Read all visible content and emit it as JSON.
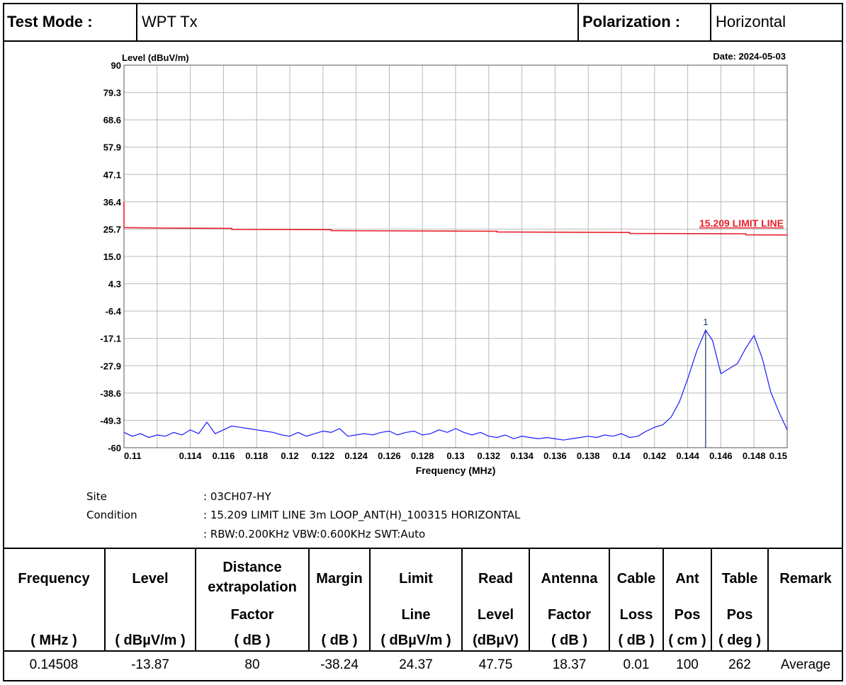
{
  "header": {
    "test_mode_label": "Test Mode :",
    "test_mode_value": "WPT Tx",
    "polarization_label": "Polarization :",
    "polarization_value": "Horizontal"
  },
  "chart_data": {
    "type": "line",
    "ylabel": "Level (dBuV/m)",
    "xlabel": "Frequency (MHz)",
    "date": "Date: 2024-05-03",
    "yticks": [
      "90",
      "79.3",
      "68.6",
      "57.9",
      "47.1",
      "36.4",
      "25.7",
      "15.0",
      "4.3",
      "-6.4",
      "-17.1",
      "-27.9",
      "-38.6",
      "-49.3",
      "-60"
    ],
    "ylim": [
      -60,
      90
    ],
    "xlim": [
      0.11,
      0.15
    ],
    "xticks": [
      "0.11",
      "0.114",
      "0.116",
      "0.118",
      "0.12",
      "0.122",
      "0.124",
      "0.126",
      "0.128",
      "0.13",
      "0.132",
      "0.134",
      "0.136",
      "0.138",
      "0.14",
      "0.142",
      "0.144",
      "0.146",
      "0.148",
      "0.15"
    ],
    "xtick_values": [
      0.11,
      0.114,
      0.116,
      0.118,
      0.12,
      0.122,
      0.124,
      0.126,
      0.128,
      0.13,
      0.132,
      0.134,
      0.136,
      0.138,
      0.14,
      0.142,
      0.144,
      0.146,
      0.148,
      0.15
    ],
    "grid": true,
    "limit_line": {
      "label": "15.209 LIMIT LINE",
      "color": "#e8202a",
      "points": [
        [
          0.11,
          36.4
        ],
        [
          0.11,
          26.3
        ],
        [
          0.1125,
          26.1
        ],
        [
          0.1165,
          26.0
        ],
        [
          0.1165,
          25.6
        ],
        [
          0.1225,
          25.5
        ],
        [
          0.1225,
          25.1
        ],
        [
          0.1325,
          24.9
        ],
        [
          0.1325,
          24.6
        ],
        [
          0.1405,
          24.4
        ],
        [
          0.1405,
          24.0
        ],
        [
          0.1475,
          23.9
        ],
        [
          0.1475,
          23.5
        ],
        [
          0.15,
          23.4
        ]
      ]
    },
    "trace": {
      "color": "#1a1aff",
      "points": [
        [
          0.11,
          -54
        ],
        [
          0.1105,
          -55.5
        ],
        [
          0.111,
          -54.5
        ],
        [
          0.1115,
          -56
        ],
        [
          0.112,
          -55
        ],
        [
          0.1125,
          -55.5
        ],
        [
          0.113,
          -54
        ],
        [
          0.1135,
          -55
        ],
        [
          0.114,
          -53
        ],
        [
          0.1145,
          -54.5
        ],
        [
          0.115,
          -50
        ],
        [
          0.1155,
          -54.5
        ],
        [
          0.116,
          -53
        ],
        [
          0.1165,
          -51.5
        ],
        [
          0.117,
          -52
        ],
        [
          0.1175,
          -52.5
        ],
        [
          0.118,
          -53
        ],
        [
          0.1185,
          -53.5
        ],
        [
          0.119,
          -54
        ],
        [
          0.1195,
          -55
        ],
        [
          0.12,
          -55.5
        ],
        [
          0.1205,
          -54
        ],
        [
          0.121,
          -55.5
        ],
        [
          0.1215,
          -54.5
        ],
        [
          0.122,
          -53.5
        ],
        [
          0.1225,
          -54
        ],
        [
          0.123,
          -52.5
        ],
        [
          0.1235,
          -55.5
        ],
        [
          0.124,
          -55
        ],
        [
          0.1245,
          -54.5
        ],
        [
          0.125,
          -55
        ],
        [
          0.1255,
          -54
        ],
        [
          0.126,
          -53.5
        ],
        [
          0.1265,
          -55
        ],
        [
          0.127,
          -54
        ],
        [
          0.1275,
          -53.5
        ],
        [
          0.128,
          -55
        ],
        [
          0.1285,
          -54.5
        ],
        [
          0.129,
          -53
        ],
        [
          0.1295,
          -54
        ],
        [
          0.13,
          -52.5
        ],
        [
          0.1305,
          -54
        ],
        [
          0.131,
          -55
        ],
        [
          0.1315,
          -54
        ],
        [
          0.132,
          -55.5
        ],
        [
          0.1325,
          -56
        ],
        [
          0.133,
          -55
        ],
        [
          0.1335,
          -56.5
        ],
        [
          0.134,
          -55.5
        ],
        [
          0.1345,
          -56
        ],
        [
          0.135,
          -56.5
        ],
        [
          0.1355,
          -56
        ],
        [
          0.136,
          -56.5
        ],
        [
          0.1365,
          -57
        ],
        [
          0.137,
          -56.5
        ],
        [
          0.1375,
          -56
        ],
        [
          0.138,
          -55.5
        ],
        [
          0.1385,
          -56
        ],
        [
          0.139,
          -55
        ],
        [
          0.1395,
          -55.5
        ],
        [
          0.14,
          -54.5
        ],
        [
          0.1405,
          -56
        ],
        [
          0.141,
          -55.5
        ],
        [
          0.1415,
          -53.5
        ],
        [
          0.142,
          -52
        ],
        [
          0.1425,
          -51
        ],
        [
          0.143,
          -48
        ],
        [
          0.1435,
          -42
        ],
        [
          0.144,
          -33
        ],
        [
          0.14455,
          -22
        ],
        [
          0.14508,
          -13.87
        ],
        [
          0.1455,
          -18
        ],
        [
          0.146,
          -31
        ],
        [
          0.1465,
          -29
        ],
        [
          0.147,
          -27
        ],
        [
          0.1475,
          -21
        ],
        [
          0.148,
          -16
        ],
        [
          0.1485,
          -25
        ],
        [
          0.149,
          -38
        ],
        [
          0.1495,
          -46
        ],
        [
          0.15,
          -53
        ]
      ]
    },
    "marker": {
      "label": "1",
      "x": 0.14508,
      "y": -13.87
    }
  },
  "conditions": {
    "site_label": "Site",
    "site_value": ": 03CH07-HY",
    "condition_label": "Condition",
    "condition_value_1": ": 15.209 LIMIT LINE 3m LOOP_ANT(H)_100315 HORIZONTAL",
    "condition_value_2": ": RBW:0.200KHz VBW:0.600KHz SWT:Auto"
  },
  "table": {
    "headers": [
      {
        "l1": "Frequency",
        "l2": "",
        "l3": "( MHz )"
      },
      {
        "l1": "Level",
        "l2": "",
        "l3": "( dBµV/m )"
      },
      {
        "l1": "Distance",
        "l1b": "extrapolation",
        "l2": "Factor",
        "l3": "( dB )"
      },
      {
        "l1": "Margin",
        "l2": "",
        "l3": "( dB )"
      },
      {
        "l1": "Limit",
        "l2": "Line",
        "l3": "( dBµV/m )"
      },
      {
        "l1": "Read",
        "l2": "Level",
        "l3": "(dBµV)"
      },
      {
        "l1": "Antenna",
        "l2": "Factor",
        "l3": "( dB )"
      },
      {
        "l1": "Cable",
        "l2": "Loss",
        "l3": "( dB )"
      },
      {
        "l1": "Ant",
        "l2": "Pos",
        "l3": "( cm )"
      },
      {
        "l1": "Table",
        "l2": "Pos",
        "l3": "( deg )"
      },
      {
        "l1": "Remark",
        "l2": "",
        "l3": ""
      }
    ],
    "rows": [
      [
        "0.14508",
        "-13.87",
        "80",
        "-38.24",
        "24.37",
        "47.75",
        "18.37",
        "0.01",
        "100",
        "262",
        "Average"
      ]
    ]
  }
}
